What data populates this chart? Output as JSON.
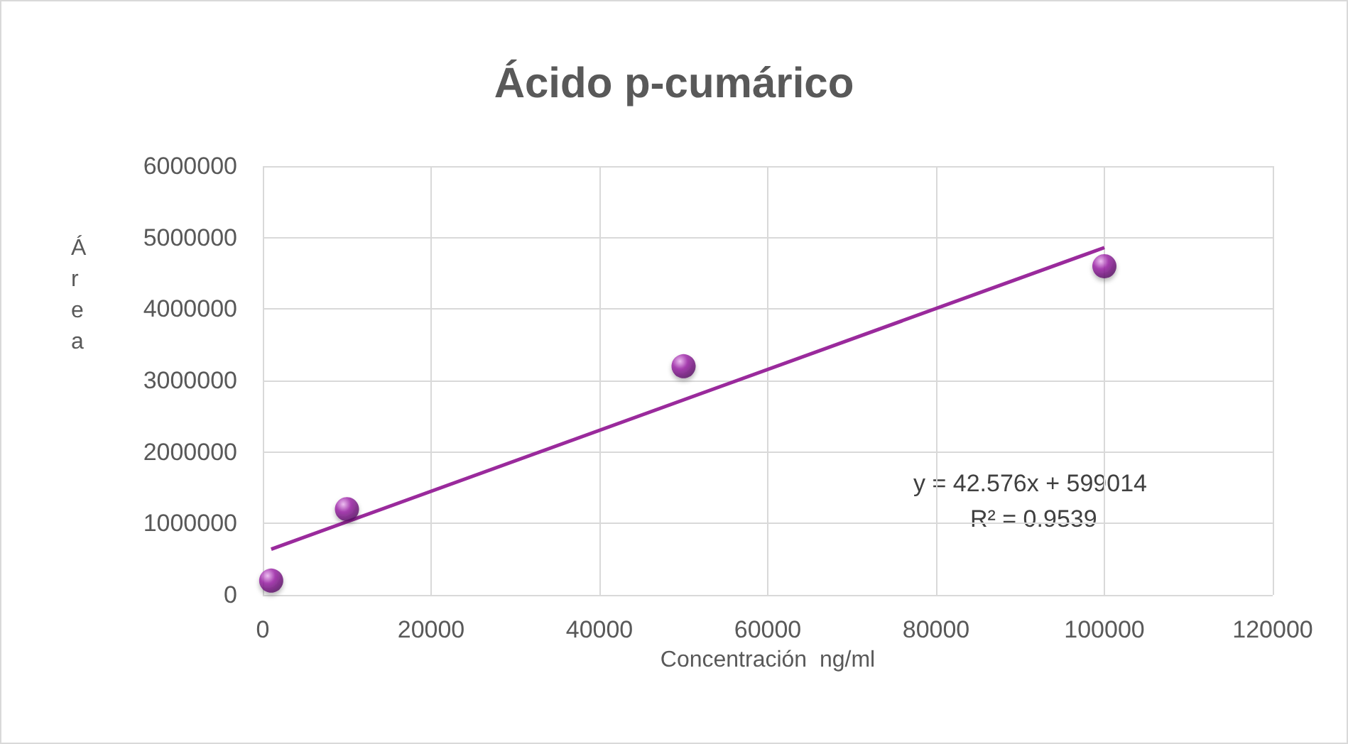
{
  "chart_data": {
    "type": "scatter",
    "title": "Ácido p-cumárico",
    "xlabel": "Concentración  ng/ml",
    "ylabel": "Área",
    "annotations": [
      "y = 42.576x + 599014",
      "R² = 0.9539"
    ],
    "series": [
      {
        "marker": "circle",
        "color": "#9b1fa6",
        "x": [
          1000,
          10000,
          50000,
          100000
        ],
        "values": [
          200000,
          1200000,
          3200000,
          4600000
        ]
      },
      {
        "type": "line",
        "color": "#9a2a9c",
        "x": [
          1000,
          100000
        ],
        "values": [
          640000,
          4860000
        ]
      }
    ],
    "xlim": [
      0,
      120000
    ],
    "xticks": [
      0,
      20000,
      40000,
      60000,
      80000,
      100000,
      120000
    ],
    "ylim": [
      0,
      6000000
    ],
    "yticks": [
      0,
      1000000,
      2000000,
      3000000,
      4000000,
      5000000,
      6000000
    ],
    "grid": true,
    "line_style": "solid"
  }
}
